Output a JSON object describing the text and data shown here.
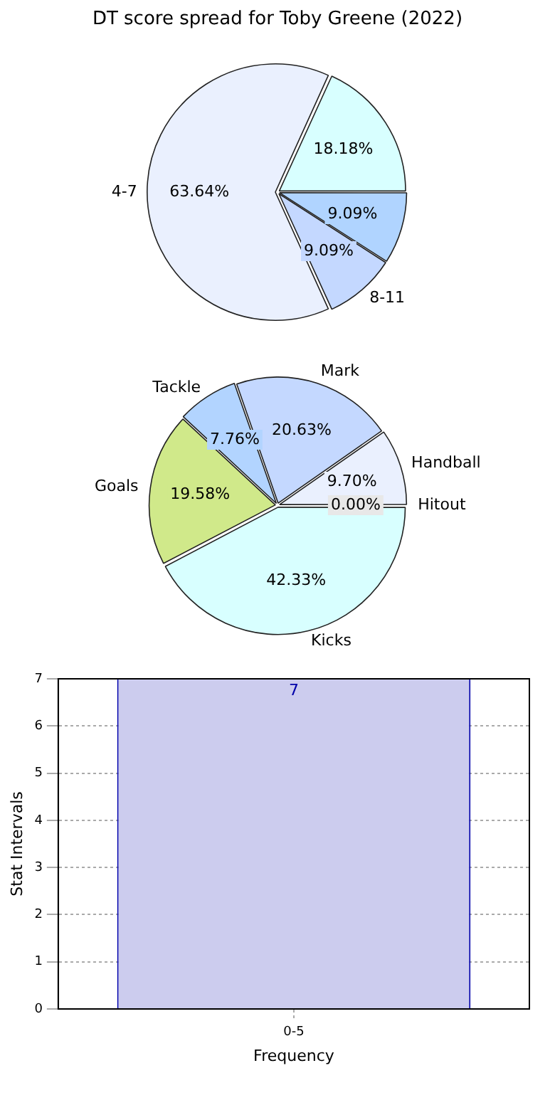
{
  "chart_data": [
    {
      "type": "pie",
      "title": "DT score spread for Toby Greene (2022)",
      "categories": [
        null,
        "8-11",
        "4-7",
        null
      ],
      "values": [
        9.09,
        9.09,
        63.64,
        18.18
      ],
      "value_labels": [
        "9.09%",
        "9.09%",
        "63.64%",
        "18.18%"
      ],
      "colors": [
        "#b0d4ff",
        "#c4d8ff",
        "#eaf0fe",
        "#d8ffff"
      ]
    },
    {
      "type": "pie",
      "categories": [
        "Kicks",
        "Goals",
        "Tackle",
        "Mark",
        "Handball",
        "Hitout"
      ],
      "values": [
        42.33,
        19.58,
        7.76,
        20.63,
        9.7,
        0.0
      ],
      "value_labels": [
        "42.33%",
        "19.58%",
        "7.76%",
        "20.63%",
        "9.70%",
        "0.00%"
      ],
      "colors": [
        "#d8ffff",
        "#d0e98a",
        "#b2d4ff",
        "#c4d8ff",
        "#eaf0fe",
        "#e8e8e8"
      ]
    },
    {
      "type": "bar",
      "categories": [
        "0-5"
      ],
      "values": [
        7
      ],
      "color": "#ccccee",
      "xlabel": "Frequency",
      "ylabel": "Stat Intervals",
      "ylim": [
        0,
        7
      ],
      "yticks": [
        0,
        1,
        2,
        3,
        4,
        5,
        6,
        7
      ],
      "grid": true,
      "data_labels": true
    }
  ]
}
